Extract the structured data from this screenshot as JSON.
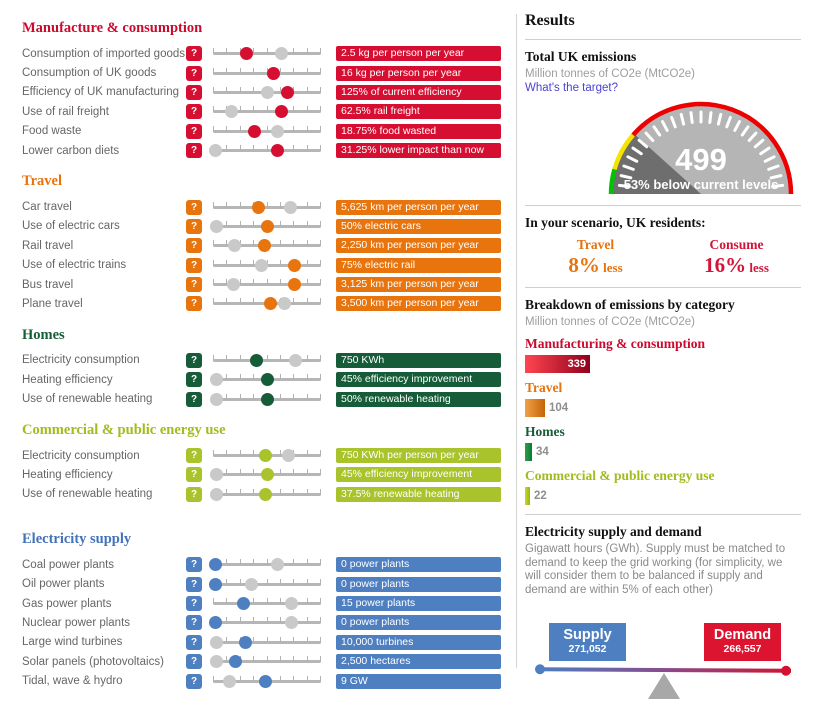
{
  "left": {
    "help_icon": "?",
    "sections": [
      {
        "id": "manufacture",
        "title": "Manufacture & consumption",
        "heading_color": "#cc0a2e",
        "box_color": "#d60f32",
        "rows": [
          {
            "label": "Consumption of imported goods",
            "value": "2.5 kg per person per year",
            "knob": 0.31,
            "ghost": 0.63
          },
          {
            "label": "Consumption of UK goods",
            "value": "16 kg per person per year",
            "knob": 0.56,
            "ghost": 0.56
          },
          {
            "label": "Efficiency of UK manufacturing",
            "value": "125% of current efficiency",
            "knob": 0.69,
            "ghost": 0.5
          },
          {
            "label": "Use of rail freight",
            "value": "62.5% rail freight",
            "knob": 0.63,
            "ghost": 0.17
          },
          {
            "label": "Food waste",
            "value": "18.75% food wasted",
            "knob": 0.38,
            "ghost": 0.6
          },
          {
            "label": "Lower carbon diets",
            "value": "31.25% lower impact than now",
            "knob": 0.6,
            "ghost": 0.02
          }
        ]
      },
      {
        "id": "travel",
        "title": "Travel",
        "heading_color": "#e8720c",
        "box_color": "#e8740d",
        "rows": [
          {
            "label": "Car travel",
            "value": "5,625 km per person per year",
            "knob": 0.42,
            "ghost": 0.72
          },
          {
            "label": "Use of electric cars",
            "value": "50% electric cars",
            "knob": 0.5,
            "ghost": 0.03
          },
          {
            "label": "Rail travel",
            "value": "2,250 km per person per year",
            "knob": 0.48,
            "ghost": 0.2
          },
          {
            "label": "Use of electric trains",
            "value": "75% electric rail",
            "knob": 0.75,
            "ghost": 0.45
          },
          {
            "label": "Bus travel",
            "value": "3,125 km per person per year",
            "knob": 0.75,
            "ghost": 0.19
          },
          {
            "label": "Plane travel",
            "value": "3,500 km per person per year",
            "knob": 0.53,
            "ghost": 0.66
          }
        ]
      },
      {
        "id": "homes",
        "title": "Homes",
        "heading_color": "#175c38",
        "box_color": "#175c38",
        "rows": [
          {
            "label": "Electricity consumption",
            "value": "750 KWh",
            "knob": 0.4,
            "ghost": 0.76
          },
          {
            "label": "Heating efficiency",
            "value": "45% efficiency improvement",
            "knob": 0.5,
            "ghost": 0.03
          },
          {
            "label": "Use of renewable heating",
            "value": "50% renewable heating",
            "knob": 0.5,
            "ghost": 0.03
          }
        ]
      },
      {
        "id": "commercial",
        "title": "Commercial & public energy use",
        "heading_color": "#a2bc1d",
        "box_color": "#a8c32b",
        "rows": [
          {
            "label": "Electricity consumption",
            "value": "750 KWh per person per year",
            "knob": 0.49,
            "ghost": 0.7
          },
          {
            "label": "Heating efficiency",
            "value": "45% efficiency improvement",
            "knob": 0.5,
            "ghost": 0.03
          },
          {
            "label": "Use of renewable heating",
            "value": "37.5% renewable heating",
            "knob": 0.49,
            "ghost": 0.03
          }
        ]
      },
      {
        "id": "electricity",
        "title": "Electricity supply",
        "extra_gap": true,
        "heading_color": "#4472b8",
        "box_color": "#4e7fc1",
        "rows": [
          {
            "label": "Coal power plants",
            "value": "0 power plants",
            "knob": 0.02,
            "ghost": 0.6
          },
          {
            "label": "Oil power plants",
            "value": "0 power plants",
            "knob": 0.02,
            "ghost": 0.36
          },
          {
            "label": "Gas power plants",
            "value": "15 power plants",
            "knob": 0.28,
            "ghost": 0.73
          },
          {
            "label": "Nuclear power plants",
            "value": "0 power plants",
            "knob": 0.02,
            "ghost": 0.73
          },
          {
            "label": "Large wind turbines",
            "value": "10,000 turbines",
            "knob": 0.3,
            "ghost": 0.03
          },
          {
            "label": "Solar panels (photovoltaics)",
            "value": "2,500 hectares",
            "knob": 0.21,
            "ghost": 0.03
          },
          {
            "label": "Tidal, wave & hydro",
            "value": "9 GW",
            "knob": 0.49,
            "ghost": 0.15
          }
        ]
      }
    ]
  },
  "results": {
    "title": "Results",
    "total": {
      "title": "Total UK emissions",
      "unit": "Million tonnes of CO2e (MtCO2e)",
      "link": "What's the target?"
    },
    "gauge": {
      "value": "499",
      "subtitle": "53% below current levels",
      "body_color": "#b5b5b5",
      "wedge_color": "#6e6e6e",
      "rim_green": "#00c200",
      "rim_yellow": "#f5e400",
      "rim_red": "#ec0000"
    },
    "scenario": {
      "title": "In your scenario, UK residents:",
      "items": [
        {
          "label": "Travel",
          "pct": "8%",
          "suffix": "less",
          "color": "#e8720c"
        },
        {
          "label": "Consume",
          "pct": "16%",
          "suffix": "less",
          "color": "#d11438"
        }
      ]
    },
    "breakdown": {
      "title": "Breakdown of emissions by category",
      "unit": "Million tonnes of CO2e (MtCO2e)",
      "items": [
        {
          "label": "Manufacturing & consumption",
          "value": "339",
          "label_color": "#cc0a2e",
          "bar_from": "#ff4550",
          "bar_to": "#90001c",
          "width": 65,
          "value_inside": true
        },
        {
          "label": "Travel",
          "value": "104",
          "label_color": "#e8720c",
          "bar_from": "#f0a149",
          "bar_to": "#c46407",
          "width": 20,
          "value_inside": false
        },
        {
          "label": "Homes",
          "value": "34",
          "label_color": "#175c38",
          "bar_from": "#2ca04a",
          "bar_to": "#0e7a33",
          "width": 7,
          "value_inside": false
        },
        {
          "label": "Commercial & public energy use",
          "value": "22",
          "label_color": "#a2bc1d",
          "bar_from": "#c9d62f",
          "bar_to": "#9cb60e",
          "width": 5,
          "value_inside": false
        }
      ]
    },
    "supply_demand": {
      "title": "Electricity supply and demand",
      "desc": "Gigawatt hours (GWh). Supply must be matched to demand to keep the grid working (for simplicity, we will consider them to be balanced if supply and demand are within 5% of each other)",
      "supply": {
        "label": "Supply",
        "value": "271,052",
        "color": "#4e7fc1"
      },
      "demand": {
        "label": "Demand",
        "value": "266,557",
        "color": "#dc1430"
      }
    }
  }
}
